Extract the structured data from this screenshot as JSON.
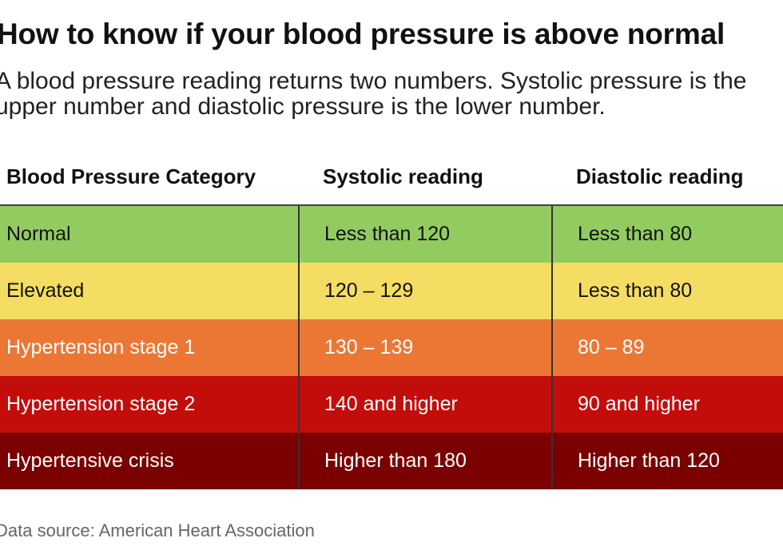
{
  "title": "How to know if your blood pressure is above normal",
  "subtitle": "A blood pressure reading returns two numbers. Systolic pressure is the upper number and diastolic pressure is the lower number.",
  "source": "Data source: American Heart Association",
  "chart_data": {
    "type": "table",
    "columns": [
      "Blood Pressure Category",
      "Systolic reading",
      "Diastolic reading"
    ],
    "rows": [
      {
        "category": "Normal",
        "systolic": "Less than 120",
        "diastolic": "Less than 80",
        "color": "#92cc61"
      },
      {
        "category": "Elevated",
        "systolic": "120 – 129",
        "diastolic": "Less than 80",
        "color": "#f4dd62"
      },
      {
        "category": "Hypertension stage 1",
        "systolic": "130 – 139",
        "diastolic": "80 – 89",
        "color": "#ec7735"
      },
      {
        "category": "Hypertension stage 2",
        "systolic": "140 and higher",
        "diastolic": "90 and higher",
        "color": "#c30d0b"
      },
      {
        "category": "Hypertensive crisis",
        "systolic": "Higher than 180",
        "diastolic": "Higher than 120",
        "color": "#7a0100"
      }
    ]
  }
}
